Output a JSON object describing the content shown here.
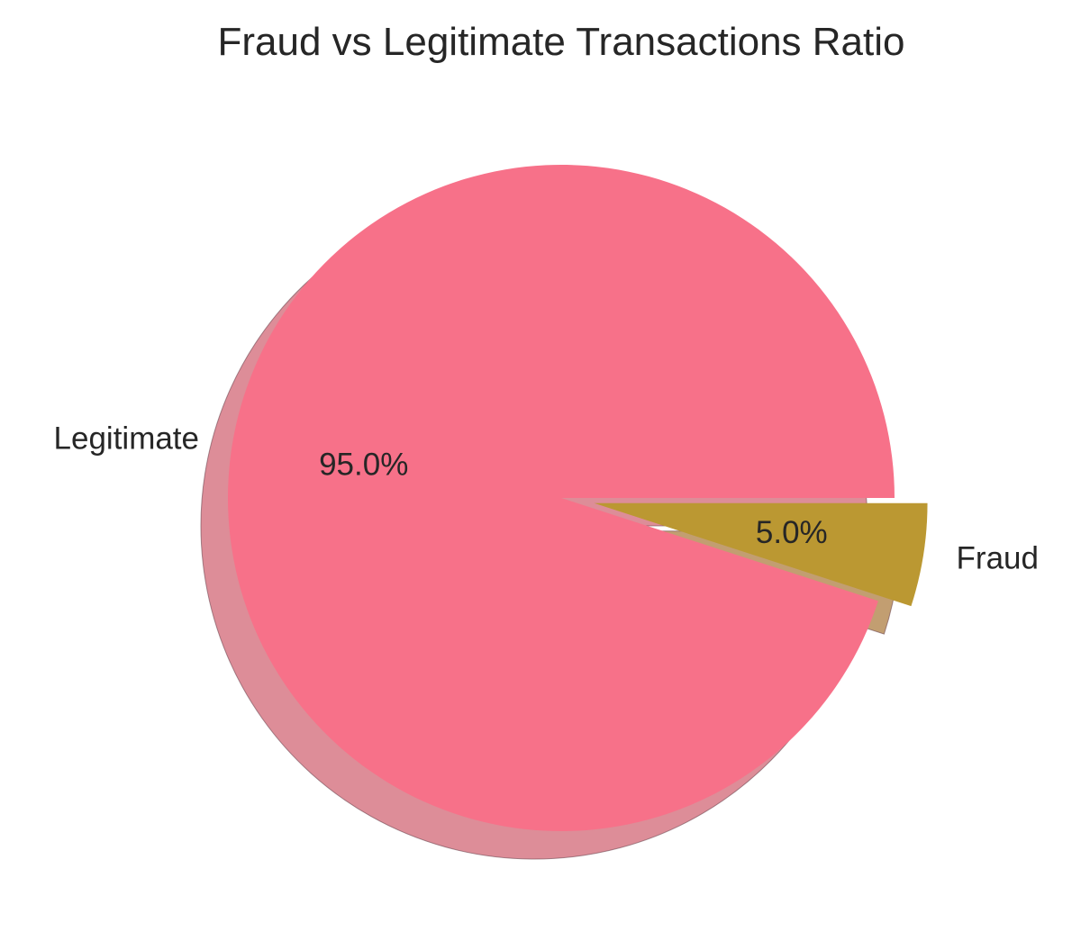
{
  "chart_data": {
    "type": "pie",
    "title": "Fraud vs Legitimate Transactions Ratio",
    "slices": [
      {
        "label": "Legitimate",
        "value": 95.0,
        "pct_label": "95.0%",
        "color": "#f77189",
        "exploded": false
      },
      {
        "label": "Fraud",
        "value": 5.0,
        "pct_label": "5.0%",
        "color": "#bb9832",
        "exploded": true
      }
    ],
    "start_angle_deg": 0,
    "shadow": true,
    "legend": "none"
  }
}
